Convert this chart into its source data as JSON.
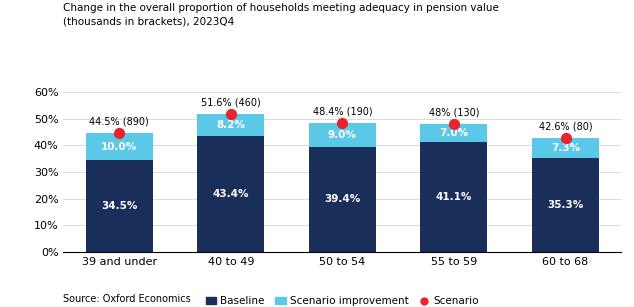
{
  "title": "Change in the overall proportion of households meeting adequacy in pension value\n(thousands in brackets), 2023Q4",
  "categories": [
    "39 and under",
    "40 to 49",
    "50 to 54",
    "55 to 59",
    "60 to 68"
  ],
  "baseline": [
    34.5,
    43.4,
    39.4,
    41.1,
    35.3
  ],
  "improvement": [
    10.0,
    8.2,
    9.0,
    7.0,
    7.3
  ],
  "scenario": [
    44.5,
    51.6,
    48.4,
    48.0,
    42.6
  ],
  "scenario_labels": [
    "44.5% (890)",
    "51.6% (460)",
    "48.4% (190)",
    "48% (130)",
    "42.6% (80)"
  ],
  "baseline_labels": [
    "34.5%",
    "43.4%",
    "39.4%",
    "41.1%",
    "35.3%"
  ],
  "improvement_labels": [
    "10.0%",
    "8.2%",
    "9.0%",
    "7.0%",
    "7.3%"
  ],
  "color_baseline": "#1a2e5a",
  "color_improvement": "#5bc8e8",
  "color_scenario": "#e8242c",
  "color_background": "#ffffff",
  "ylim": [
    0,
    60
  ],
  "yticks": [
    0,
    10,
    20,
    30,
    40,
    50,
    60
  ],
  "source": "Source: Oxford Economics",
  "legend_labels": [
    "Baseline",
    "Scenario improvement",
    "Scenario"
  ]
}
